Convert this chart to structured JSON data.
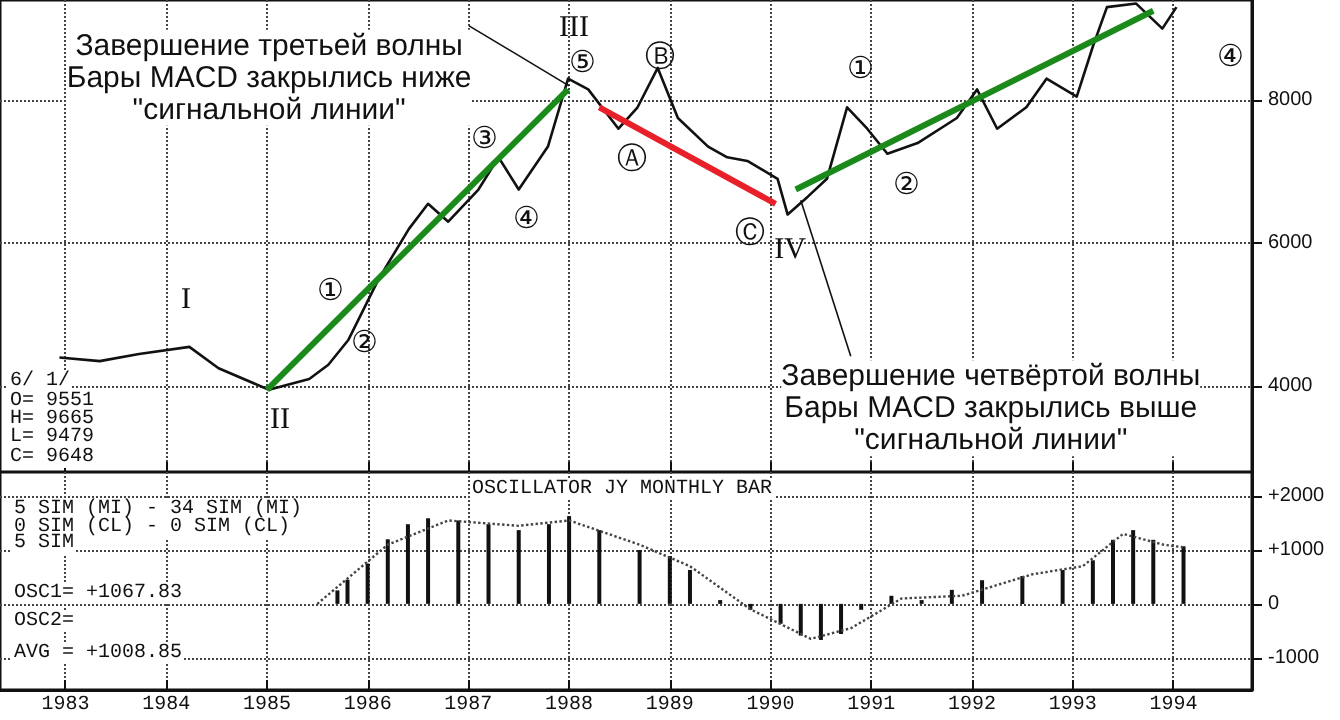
{
  "chart_data": [
    {
      "type": "line",
      "xlim": [
        1982.35,
        1994.78
      ],
      "ylim": [
        2800,
        9400
      ],
      "yticks": [
        4000,
        6000,
        8000
      ],
      "xticks": [
        1983,
        1984,
        1985,
        1986,
        1987,
        1988,
        1989,
        1990,
        1991,
        1992,
        1993,
        1994
      ],
      "tick_labels": "y",
      "grid": true,
      "marker": "none",
      "series": [
        {
          "color": "#111111",
          "x": [
            1982.94,
            1983.34,
            1983.73,
            1984.23,
            1984.52,
            1985.02,
            1985.42,
            1985.61,
            1985.81,
            1986.11,
            1986.41,
            1986.6,
            1986.8,
            1987.1,
            1987.3,
            1987.5,
            1987.79,
            1987.99,
            1988.19,
            1988.49,
            1988.68,
            1988.88,
            1989.08,
            1989.38,
            1989.57,
            1989.77,
            1990.07,
            1990.17,
            1990.37,
            1990.56,
            1990.76,
            1990.96,
            1991.16,
            1991.46,
            1991.85,
            1992.05,
            1992.25,
            1992.54,
            1992.74,
            1993.04,
            1993.2,
            1993.34,
            1993.63,
            1993.89,
            1994.03
          ],
          "values": [
            4400,
            4350,
            4450,
            4550,
            4250,
            3950,
            4100,
            4300,
            4650,
            5500,
            6200,
            6550,
            6300,
            6750,
            7200,
            6750,
            7350,
            8300,
            8150,
            7600,
            7900,
            8450,
            7750,
            7350,
            7200,
            7150,
            6900,
            6400,
            6650,
            6900,
            7900,
            7600,
            7250,
            7400,
            7750,
            8150,
            7600,
            7900,
            8300,
            8050,
            8750,
            9300,
            9350,
            9000,
            9300
          ]
        },
        {
          "type": "line",
          "color": "#1a8a1a",
          "x": [
            1985.0,
            1987.99
          ],
          "values": [
            3950,
            8150
          ]
        },
        {
          "type": "line",
          "color": "#e8202a",
          "x": [
            1988.3,
            1990.05
          ],
          "values": [
            7900,
            6550
          ]
        },
        {
          "type": "line",
          "color": "#1a8a1a",
          "x": [
            1990.25,
            1993.8
          ],
          "values": [
            6750,
            9250
          ]
        }
      ],
      "annotations": [
        {
          "text": "Завершение третьей волны\nБары MACD закрылись ниже\n\"сигнальной линии\"",
          "x": 1988.0,
          "y": 8200
        },
        {
          "text": "Завершение четвёртой волны\nБары MACD закрылись выше\n\"сигнальной линии\"",
          "x": 1990.3,
          "y": 6600
        },
        "I",
        "II",
        "III",
        "IV",
        "①",
        "②",
        "③",
        "④",
        "⑤",
        "Ⓐ",
        "Ⓑ",
        "Ⓒ",
        "①",
        "②",
        "④",
        "6/ 1/",
        "O= 9551",
        "H= 9665",
        "L= 9479",
        "C= 9648"
      ]
    },
    {
      "type": "bar",
      "xlim": [
        1982.35,
        1994.78
      ],
      "ylim": [
        -1600,
        2450
      ],
      "yticks": [
        {
          "value": 2000,
          "label": "+2000"
        },
        {
          "value": 1000,
          "label": "+1000"
        },
        0,
        -1000
      ],
      "xticks": [
        1983,
        1984,
        1985,
        1986,
        1987,
        1988,
        1989,
        1990,
        1991,
        1992,
        1993,
        1994
      ],
      "grid": true,
      "series": [
        {
          "color": "#111111",
          "x": [
            1985.6,
            1985.7,
            1985.8,
            1986.0,
            1986.2,
            1986.4,
            1986.6,
            1986.9,
            1987.2,
            1987.5,
            1987.8,
            1988.0,
            1988.3,
            1988.7,
            1989.0,
            1989.2,
            1989.5,
            1989.8,
            1990.1,
            1990.3,
            1990.5,
            1990.7,
            1990.9,
            1991.2,
            1991.5,
            1991.8,
            1992.1,
            1992.5,
            1992.9,
            1993.2,
            1993.4,
            1993.6,
            1993.8,
            1994.1
          ],
          "values": [
            0,
            250,
            450,
            750,
            1200,
            1480,
            1590,
            1550,
            1480,
            1370,
            1480,
            1630,
            1370,
            1000,
            890,
            630,
            70,
            -110,
            -370,
            -590,
            -670,
            -560,
            -110,
            150,
            70,
            260,
            440,
            520,
            630,
            810,
            1190,
            1370,
            1190,
            1070
          ]
        },
        {
          "type": "line",
          "color": "#444444",
          "line_style": "dotted",
          "x": [
            1985.5,
            1986.2,
            1986.8,
            1987.5,
            1988.0,
            1988.7,
            1989.2,
            1989.8,
            1990.4,
            1990.8,
            1991.3,
            1991.9,
            1992.6,
            1993.1,
            1993.5,
            1993.9,
            1994.1
          ],
          "values": [
            0,
            1100,
            1550,
            1450,
            1550,
            1100,
            700,
            -100,
            -650,
            -450,
            100,
            150,
            550,
            700,
            1300,
            1100,
            1050
          ]
        }
      ],
      "annotations": [
        "OSCILLATOR JY MONTHLY BAR",
        "5 SIM (MI) - 34 SIM (MI)",
        "0 SIM (CL) - 0 SIM (CL)",
        "5 SIM",
        "OSC1= +1067.83",
        "OSC2=",
        "AVG = +1008.85"
      ]
    }
  ]
}
